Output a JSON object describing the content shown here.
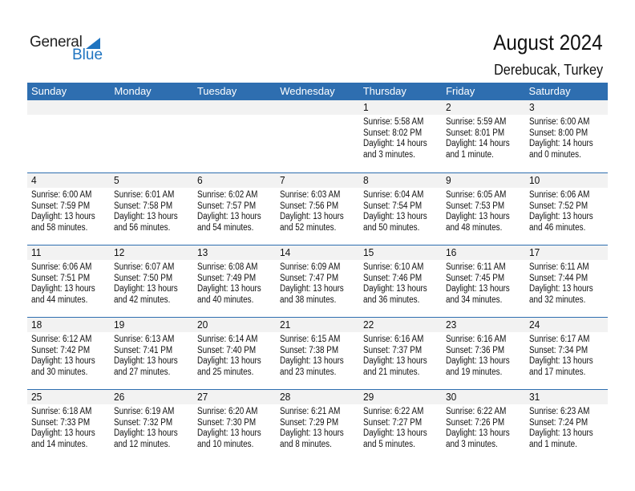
{
  "brand": {
    "word1": "General",
    "word2": "Blue",
    "color": "#1f74c0"
  },
  "header": {
    "title": "August 2024",
    "location": "Derebucak, Turkey"
  },
  "colors": {
    "header_bg": "#2e6eb0",
    "date_band": "#f2f2f2"
  },
  "weekdays": [
    "Sunday",
    "Monday",
    "Tuesday",
    "Wednesday",
    "Thursday",
    "Friday",
    "Saturday"
  ],
  "labels": {
    "sunrise": "Sunrise:",
    "sunset": "Sunset:",
    "daylight": "Daylight:"
  },
  "first_weekday_index": 4,
  "days": [
    {
      "d": "1",
      "sunrise": "5:58 AM",
      "sunset": "8:02 PM",
      "dl1": "14 hours",
      "dl2": "and 3 minutes."
    },
    {
      "d": "2",
      "sunrise": "5:59 AM",
      "sunset": "8:01 PM",
      "dl1": "14 hours",
      "dl2": "and 1 minute."
    },
    {
      "d": "3",
      "sunrise": "6:00 AM",
      "sunset": "8:00 PM",
      "dl1": "14 hours",
      "dl2": "and 0 minutes."
    },
    {
      "d": "4",
      "sunrise": "6:00 AM",
      "sunset": "7:59 PM",
      "dl1": "13 hours",
      "dl2": "and 58 minutes."
    },
    {
      "d": "5",
      "sunrise": "6:01 AM",
      "sunset": "7:58 PM",
      "dl1": "13 hours",
      "dl2": "and 56 minutes."
    },
    {
      "d": "6",
      "sunrise": "6:02 AM",
      "sunset": "7:57 PM",
      "dl1": "13 hours",
      "dl2": "and 54 minutes."
    },
    {
      "d": "7",
      "sunrise": "6:03 AM",
      "sunset": "7:56 PM",
      "dl1": "13 hours",
      "dl2": "and 52 minutes."
    },
    {
      "d": "8",
      "sunrise": "6:04 AM",
      "sunset": "7:54 PM",
      "dl1": "13 hours",
      "dl2": "and 50 minutes."
    },
    {
      "d": "9",
      "sunrise": "6:05 AM",
      "sunset": "7:53 PM",
      "dl1": "13 hours",
      "dl2": "and 48 minutes."
    },
    {
      "d": "10",
      "sunrise": "6:06 AM",
      "sunset": "7:52 PM",
      "dl1": "13 hours",
      "dl2": "and 46 minutes."
    },
    {
      "d": "11",
      "sunrise": "6:06 AM",
      "sunset": "7:51 PM",
      "dl1": "13 hours",
      "dl2": "and 44 minutes."
    },
    {
      "d": "12",
      "sunrise": "6:07 AM",
      "sunset": "7:50 PM",
      "dl1": "13 hours",
      "dl2": "and 42 minutes."
    },
    {
      "d": "13",
      "sunrise": "6:08 AM",
      "sunset": "7:49 PM",
      "dl1": "13 hours",
      "dl2": "and 40 minutes."
    },
    {
      "d": "14",
      "sunrise": "6:09 AM",
      "sunset": "7:47 PM",
      "dl1": "13 hours",
      "dl2": "and 38 minutes."
    },
    {
      "d": "15",
      "sunrise": "6:10 AM",
      "sunset": "7:46 PM",
      "dl1": "13 hours",
      "dl2": "and 36 minutes."
    },
    {
      "d": "16",
      "sunrise": "6:11 AM",
      "sunset": "7:45 PM",
      "dl1": "13 hours",
      "dl2": "and 34 minutes."
    },
    {
      "d": "17",
      "sunrise": "6:11 AM",
      "sunset": "7:44 PM",
      "dl1": "13 hours",
      "dl2": "and 32 minutes."
    },
    {
      "d": "18",
      "sunrise": "6:12 AM",
      "sunset": "7:42 PM",
      "dl1": "13 hours",
      "dl2": "and 30 minutes."
    },
    {
      "d": "19",
      "sunrise": "6:13 AM",
      "sunset": "7:41 PM",
      "dl1": "13 hours",
      "dl2": "and 27 minutes."
    },
    {
      "d": "20",
      "sunrise": "6:14 AM",
      "sunset": "7:40 PM",
      "dl1": "13 hours",
      "dl2": "and 25 minutes."
    },
    {
      "d": "21",
      "sunrise": "6:15 AM",
      "sunset": "7:38 PM",
      "dl1": "13 hours",
      "dl2": "and 23 minutes."
    },
    {
      "d": "22",
      "sunrise": "6:16 AM",
      "sunset": "7:37 PM",
      "dl1": "13 hours",
      "dl2": "and 21 minutes."
    },
    {
      "d": "23",
      "sunrise": "6:16 AM",
      "sunset": "7:36 PM",
      "dl1": "13 hours",
      "dl2": "and 19 minutes."
    },
    {
      "d": "24",
      "sunrise": "6:17 AM",
      "sunset": "7:34 PM",
      "dl1": "13 hours",
      "dl2": "and 17 minutes."
    },
    {
      "d": "25",
      "sunrise": "6:18 AM",
      "sunset": "7:33 PM",
      "dl1": "13 hours",
      "dl2": "and 14 minutes."
    },
    {
      "d": "26",
      "sunrise": "6:19 AM",
      "sunset": "7:32 PM",
      "dl1": "13 hours",
      "dl2": "and 12 minutes."
    },
    {
      "d": "27",
      "sunrise": "6:20 AM",
      "sunset": "7:30 PM",
      "dl1": "13 hours",
      "dl2": "and 10 minutes."
    },
    {
      "d": "28",
      "sunrise": "6:21 AM",
      "sunset": "7:29 PM",
      "dl1": "13 hours",
      "dl2": "and 8 minutes."
    },
    {
      "d": "29",
      "sunrise": "6:22 AM",
      "sunset": "7:27 PM",
      "dl1": "13 hours",
      "dl2": "and 5 minutes."
    },
    {
      "d": "30",
      "sunrise": "6:22 AM",
      "sunset": "7:26 PM",
      "dl1": "13 hours",
      "dl2": "and 3 minutes."
    },
    {
      "d": "31",
      "sunrise": "6:23 AM",
      "sunset": "7:24 PM",
      "dl1": "13 hours",
      "dl2": "and 1 minute."
    }
  ]
}
